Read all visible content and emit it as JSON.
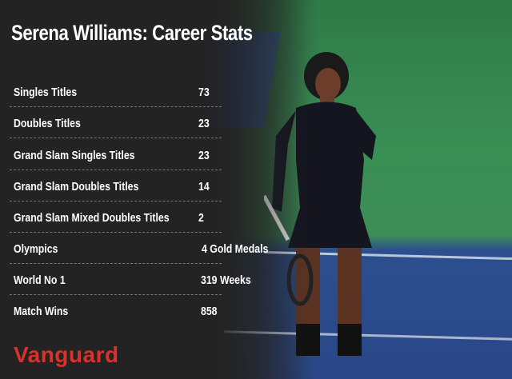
{
  "title": "Serena Williams: Career Stats",
  "stats": [
    {
      "label": "Singles Titles",
      "value": "73"
    },
    {
      "label": "Doubles Titles",
      "value": "23"
    },
    {
      "label": "Grand Slam Singles Titles",
      "value": "23"
    },
    {
      "label": "Grand Slam Doubles Titles",
      "value": "14"
    },
    {
      "label": "Grand Slam Mixed Doubles Titles",
      "value": "2"
    },
    {
      "label": "Olympics",
      "value": "4 Gold Medals"
    },
    {
      "label": "World No 1",
      "value": "319 Weeks"
    },
    {
      "label": "Match Wins",
      "value": "858"
    }
  ],
  "brand": "Vanguard",
  "colors": {
    "background": "#232323",
    "brand": "#d8332b",
    "court_green": "#3a8f55",
    "court_blue": "#2a4788"
  }
}
